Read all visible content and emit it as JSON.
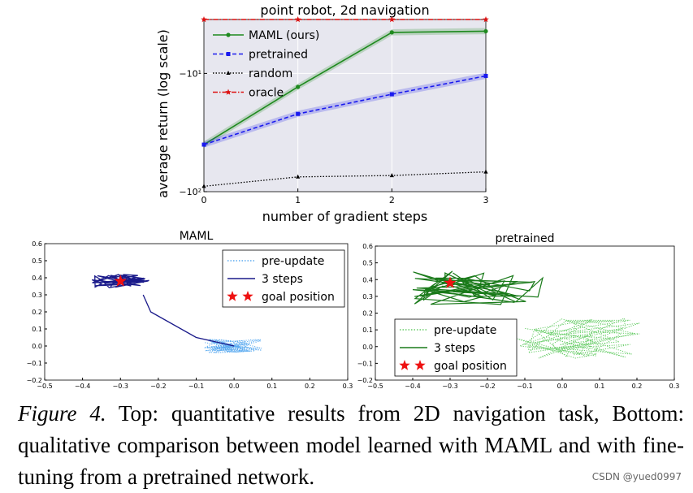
{
  "chart_data": [
    {
      "type": "line",
      "title": "point robot, 2d navigation",
      "xlabel": "number of gradient steps",
      "ylabel": "average return (log scale)",
      "x": [
        0,
        1,
        2,
        3
      ],
      "xticks": [
        "0",
        "1",
        "2",
        "3"
      ],
      "yscale": "symlog",
      "yticks": [
        "−10¹",
        "−10²"
      ],
      "ylim": [
        -100,
        -3.5
      ],
      "legend_position": "top-left",
      "series": [
        {
          "name": "MAML (ours)",
          "color": "#1f8a1f",
          "values": [
            -40,
            -13,
            -4.5,
            -4.4
          ],
          "band": 0.06
        },
        {
          "name": "pretrained",
          "color": "#1a1aee",
          "values": [
            -40,
            -22,
            -15,
            -10.5
          ],
          "band": 0.06
        },
        {
          "name": "random",
          "color": "#000000",
          "values": [
            -90,
            -75,
            -73,
            -68
          ],
          "band": 0
        },
        {
          "name": "oracle",
          "color": "#dd1111",
          "values": [
            -3.5,
            -3.5,
            -3.5,
            -3.5
          ],
          "band": 0
        }
      ]
    },
    {
      "type": "scatter",
      "title": "MAML",
      "xlim": [
        -0.5,
        0.3
      ],
      "ylim": [
        -0.2,
        0.6
      ],
      "xticks": [
        "−0.5",
        "−0.4",
        "−0.3",
        "−0.2",
        "−0.1",
        "0.0",
        "0.1",
        "0.2",
        "0.3"
      ],
      "yticks": [
        "−0.2",
        "−0.1",
        "0.0",
        "0.1",
        "0.2",
        "0.3",
        "0.4",
        "0.5",
        "0.6"
      ],
      "legend_position": "top-right",
      "goal": [
        -0.3,
        0.38
      ],
      "series": [
        {
          "name": "pre-update",
          "color": "#5aaaf0",
          "style": "dotted",
          "center": [
            0.0,
            0.0
          ],
          "spread": [
            0.08,
            0.04
          ]
        },
        {
          "name": "3 steps",
          "color": "#1a1a8a",
          "style": "solid",
          "center": [
            -0.3,
            0.38
          ],
          "spread": [
            0.08,
            0.04
          ]
        },
        {
          "name": "goal position",
          "color": "#ee1111",
          "style": "star"
        }
      ]
    },
    {
      "type": "scatter",
      "title": "pretrained",
      "xlim": [
        -0.5,
        0.3
      ],
      "ylim": [
        -0.2,
        0.6
      ],
      "xticks": [
        "−0.5",
        "−0.4",
        "−0.3",
        "−0.2",
        "−0.1",
        "0.0",
        "0.1",
        "0.2",
        "0.3"
      ],
      "yticks": [
        "−0.2",
        "−0.1",
        "0.0",
        "0.1",
        "0.2",
        "0.3",
        "0.4",
        "0.5",
        "0.6"
      ],
      "legend_position": "bottom-left",
      "goal": [
        -0.3,
        0.38
      ],
      "series": [
        {
          "name": "pre-update",
          "color": "#66cc66",
          "style": "dotted",
          "center": [
            0.05,
            0.05
          ],
          "spread": [
            0.17,
            0.12
          ]
        },
        {
          "name": "3 steps",
          "color": "#1a7a1a",
          "style": "solid",
          "center": [
            -0.22,
            0.35
          ],
          "spread": [
            0.18,
            0.1
          ]
        },
        {
          "name": "goal position",
          "color": "#ee1111",
          "style": "star"
        }
      ]
    }
  ],
  "caption": {
    "label": "Figure 4.",
    "text": "Top: quantitative results from 2D navigation task, Bottom: qualitative comparison between model learned with MAML and with fine-tuning from a pretrained network."
  },
  "watermark": "CSDN @yued0997"
}
